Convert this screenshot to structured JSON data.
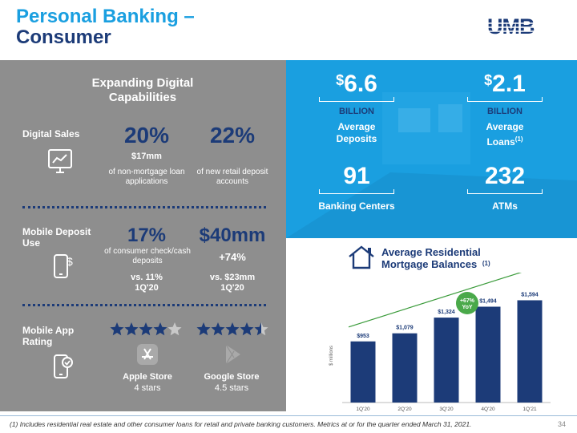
{
  "title_line1": "Personal Banking –",
  "title_line2": "Consumer",
  "logo_text": "UMB",
  "colors": {
    "accent": "#1a9fe0",
    "navy": "#1c3b78",
    "panel": "#8e8e8e"
  },
  "digital": {
    "heading": "Expanding Digital Capabilities",
    "sales": {
      "label": "Digital Sales",
      "icon": "computer-chart-icon",
      "v1": "20%",
      "v1_sub": "$17mm",
      "v1_desc": "of non-mortgage loan applications",
      "v2": "22%",
      "v2_desc": "of new retail deposit accounts"
    },
    "mobile": {
      "label": "Mobile Deposit Use",
      "icon": "mobile-dollar-icon",
      "v1": "17%",
      "v1_desc": "of consumer check/cash deposits",
      "v1_cmp": "vs. 11% 1Q'20",
      "v2": "$40mm",
      "v2_growth": "+74%",
      "v2_cmp": "vs. $23mm 1Q'20"
    },
    "app": {
      "label": "Mobile App Rating",
      "icon": "mobile-check-icon",
      "apple": "Apple Store",
      "apple_stars": "4 stars",
      "google": "Google Store",
      "google_stars": "4.5 stars",
      "apple_rating": 4,
      "google_rating": 4.5
    }
  },
  "kpis": [
    {
      "prefix": "$",
      "value": "6.6",
      "unit": "BILLION",
      "label": "Average Deposits"
    },
    {
      "prefix": "$",
      "value": "2.1",
      "unit": "BILLION",
      "label": "Average Loans",
      "sup": "(1)"
    },
    {
      "value": "91",
      "label": "Banking Centers"
    },
    {
      "value": "232",
      "label": "ATMs"
    }
  ],
  "chart_header": {
    "title_line1": "Average Residential",
    "title_line2": "Mortgage Balances",
    "note": "(1)",
    "icon": "house-icon"
  },
  "chart_data": {
    "type": "bar",
    "categories": [
      "1Q'20",
      "2Q'20",
      "3Q'20",
      "4Q'20",
      "1Q'21"
    ],
    "values": [
      953,
      1079,
      1324,
      1494,
      1594
    ],
    "labels": [
      "$953",
      "$1,079",
      "$1,324",
      "$1,494",
      "$1,594"
    ],
    "ylabel": "$ millions",
    "growth_badge": "+67% YoY",
    "ylim": [
      0,
      1900
    ],
    "color": "#1c3b78"
  },
  "footnote": "(1) Includes residential real estate and other consumer loans for retail and private banking customers. Metrics at or for the quarter ended March 31, 2021.",
  "page_number": "34"
}
